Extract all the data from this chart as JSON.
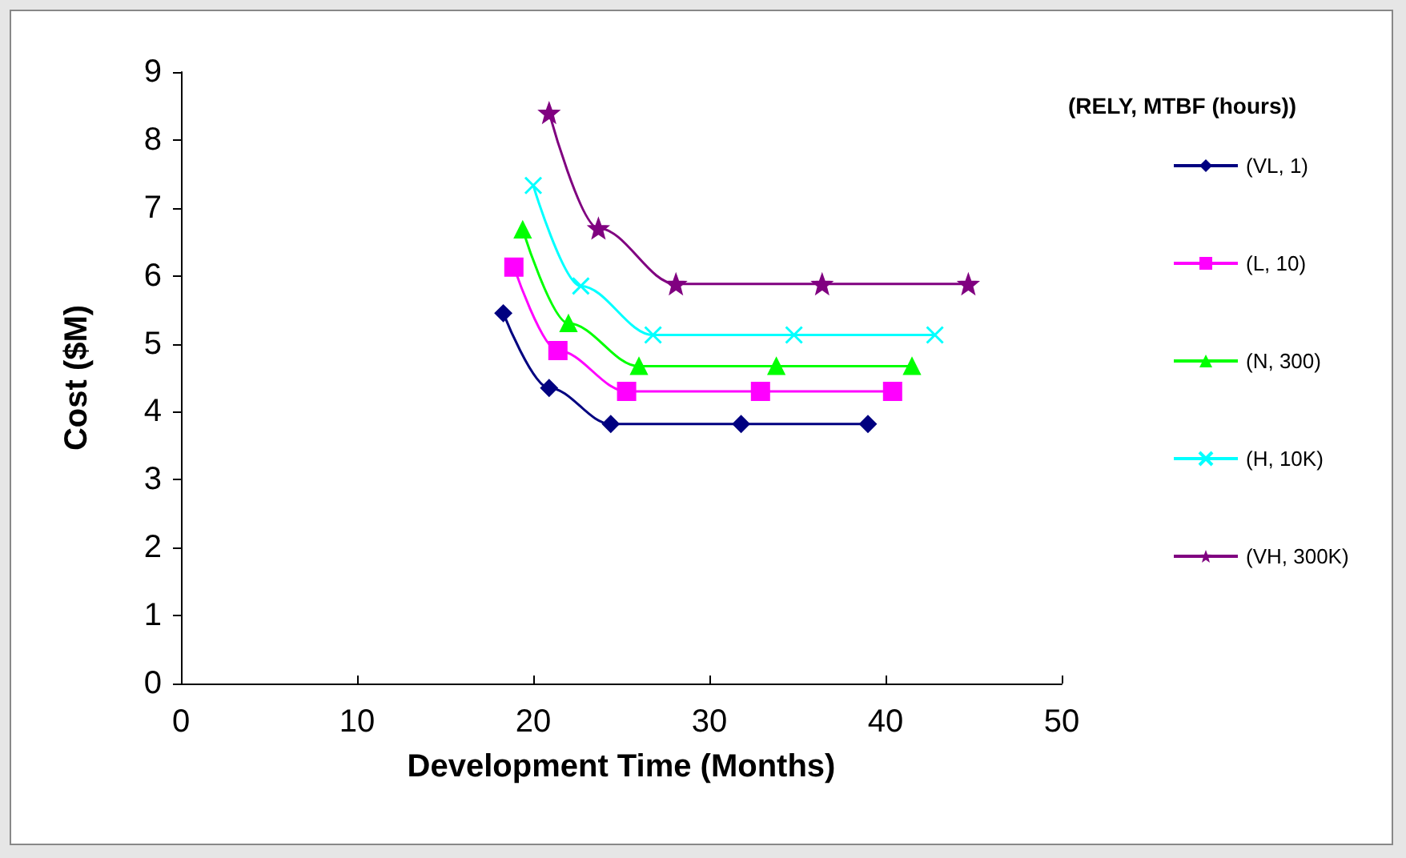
{
  "chart_data": {
    "type": "line",
    "xlabel": "Development Time (Months)",
    "ylabel": "Cost ($M)",
    "legend_title": "(RELY, MTBF (hours))",
    "legend": "right",
    "grid": false,
    "line_style": "solid",
    "xlim": [
      0,
      50
    ],
    "xticks": [
      0,
      10,
      20,
      30,
      40,
      50
    ],
    "ylim": [
      0,
      9
    ],
    "yticks": [
      0,
      1,
      2,
      3,
      4,
      5,
      6,
      7,
      8,
      9
    ],
    "series": [
      {
        "name": "(VL, 1)",
        "color": "#000080",
        "marker": "diamond",
        "x": [
          18.3,
          20.9,
          24.4,
          31.8,
          39.0
        ],
        "values": [
          5.45,
          4.35,
          3.82,
          3.82,
          3.82
        ]
      },
      {
        "name": "(L, 10)",
        "color": "#ff00ff",
        "marker": "square",
        "x": [
          18.9,
          21.4,
          25.3,
          32.9,
          40.4
        ],
        "values": [
          6.13,
          4.9,
          4.3,
          4.3,
          4.3
        ]
      },
      {
        "name": "(N, 300)",
        "color": "#00ff00",
        "marker": "triangle",
        "x": [
          19.4,
          22.0,
          26.0,
          33.8,
          41.5
        ],
        "values": [
          6.68,
          5.3,
          4.67,
          4.67,
          4.67
        ]
      },
      {
        "name": "(H, 10K)",
        "color": "#00ffff",
        "marker": "cross",
        "x": [
          20.0,
          22.7,
          26.8,
          34.8,
          42.8
        ],
        "values": [
          7.33,
          5.85,
          5.13,
          5.13,
          5.13
        ]
      },
      {
        "name": "(VH, 300K)",
        "color": "#800080",
        "marker": "star",
        "x": [
          20.9,
          23.7,
          28.1,
          36.4,
          44.7
        ],
        "values": [
          8.4,
          6.7,
          5.88,
          5.88,
          5.88
        ]
      }
    ]
  }
}
